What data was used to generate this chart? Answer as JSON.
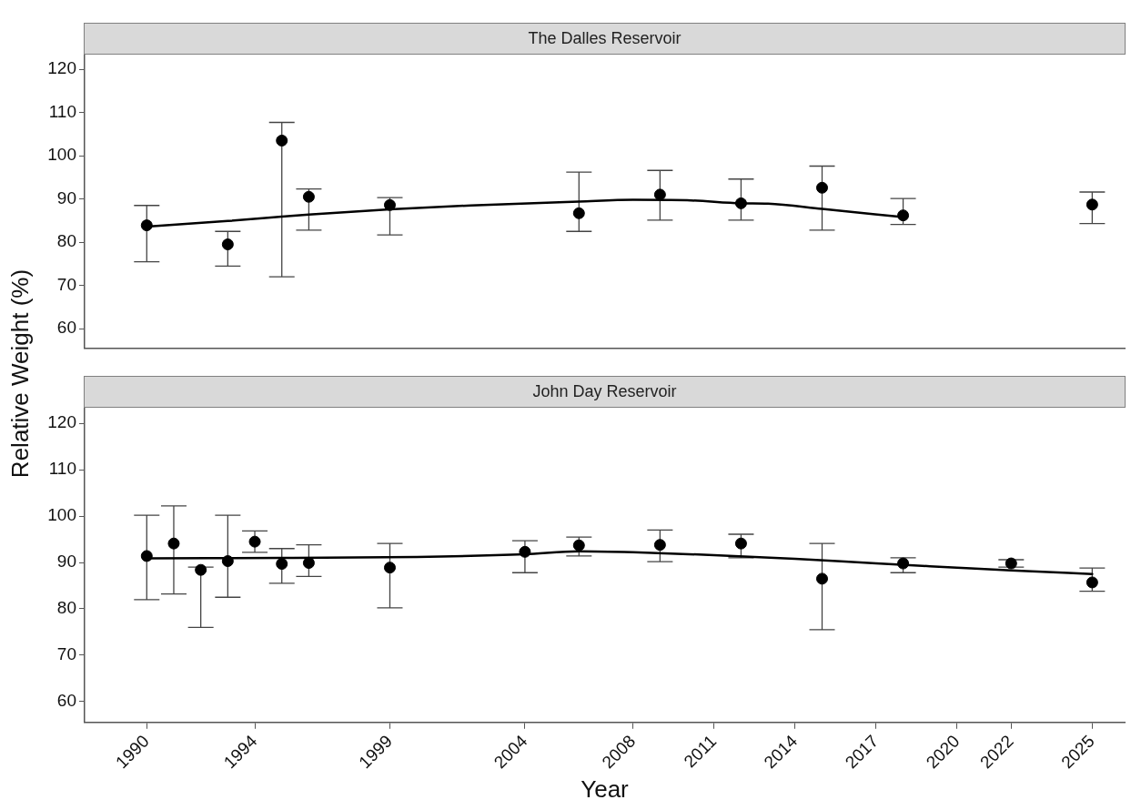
{
  "chart_data": [
    {
      "type": "scatter",
      "title": "The Dalles Reservoir",
      "ylabel": "Relative Weight (%)",
      "xlim": [
        1987.7,
        2026.2
      ],
      "ylim": [
        55.5,
        123.5
      ],
      "xticks": [
        1990,
        1994,
        1999,
        2004,
        2008,
        2011,
        2014,
        2017,
        2020,
        2022,
        2025
      ],
      "yticks": [
        60,
        70,
        80,
        90,
        100,
        110,
        120
      ],
      "tick_labels": "y",
      "grid": false,
      "legend": false,
      "series": [
        {
          "type": "scatter",
          "marker": "circle",
          "color": "#000000",
          "x": [
            1990,
            1993,
            1995,
            1996,
            1999,
            2006,
            2009,
            2012,
            2015,
            2018,
            2025
          ],
          "values": [
            83.9,
            79.5,
            103.5,
            90.5,
            88.6,
            86.7,
            91.0,
            89.0,
            92.6,
            86.2,
            88.7
          ],
          "errors": [
            [
              75.5,
              88.5
            ],
            [
              74.5,
              82.5
            ],
            [
              72,
              107.7
            ],
            [
              82.8,
              92.3
            ],
            [
              81.7,
              90.3
            ],
            [
              82.5,
              96.2
            ],
            [
              85.1,
              96.6
            ],
            [
              85.1,
              94.6
            ],
            [
              82.8,
              97.6
            ],
            [
              84.1,
              90.1
            ],
            [
              84.3,
              91.6
            ]
          ]
        },
        {
          "type": "line",
          "marker": "none",
          "color": "#000000",
          "x": [
            1990,
            1993,
            1995,
            1996,
            1999,
            2002,
            2006,
            2008,
            2010,
            2012,
            2013,
            2015,
            2018
          ],
          "values": [
            83.6,
            84.9,
            85.9,
            86.4,
            87.6,
            88.5,
            89.4,
            89.8,
            89.7,
            89.0,
            88.9,
            87.7,
            85.8
          ]
        }
      ]
    },
    {
      "type": "scatter",
      "title": "John Day Reservoir",
      "xlabel": "Year",
      "xlim": [
        1987.7,
        2026.2
      ],
      "ylim": [
        55.5,
        123.5
      ],
      "xticks": [
        1990,
        1994,
        1999,
        2004,
        2008,
        2011,
        2014,
        2017,
        2020,
        2022,
        2025
      ],
      "yticks": [
        60,
        70,
        80,
        90,
        100,
        110,
        120
      ],
      "grid": false,
      "legend": false,
      "series": [
        {
          "type": "scatter",
          "marker": "circle",
          "color": "#000000",
          "x": [
            1990,
            1991,
            1992,
            1993,
            1994,
            1995,
            1996,
            1999,
            2004,
            2006,
            2009,
            2012,
            2015,
            2018,
            2022,
            2025
          ],
          "values": [
            91.4,
            94.1,
            88.4,
            90.3,
            94.5,
            89.7,
            89.9,
            88.9,
            92.3,
            93.7,
            93.8,
            94.1,
            86.5,
            89.8,
            89.8,
            85.7
          ],
          "errors": [
            [
              82.0,
              100.2
            ],
            [
              83.2,
              102.2
            ],
            [
              76.0,
              89.0
            ],
            [
              82.5,
              100.2
            ],
            [
              92.2,
              96.8
            ],
            [
              85.5,
              93.0
            ],
            [
              87.0,
              93.8
            ],
            [
              80.2,
              94.1
            ],
            [
              87.8,
              94.7
            ],
            [
              91.4,
              95.5
            ],
            [
              90.2,
              97.0
            ],
            [
              91.0,
              96.1
            ],
            [
              75.5,
              94.1
            ],
            [
              87.8,
              91.0
            ],
            [
              89.0,
              90.6
            ],
            [
              83.8,
              88.8
            ]
          ]
        },
        {
          "type": "line",
          "marker": "none",
          "color": "#000000",
          "x": [
            1990,
            1995,
            2000,
            2004,
            2006,
            2008,
            2011,
            2014,
            2017,
            2020,
            2022,
            2025
          ],
          "values": [
            90.9,
            91.0,
            91.2,
            91.8,
            92.4,
            92.2,
            91.6,
            90.8,
            89.8,
            88.9,
            88.3,
            87.5
          ]
        }
      ]
    }
  ]
}
